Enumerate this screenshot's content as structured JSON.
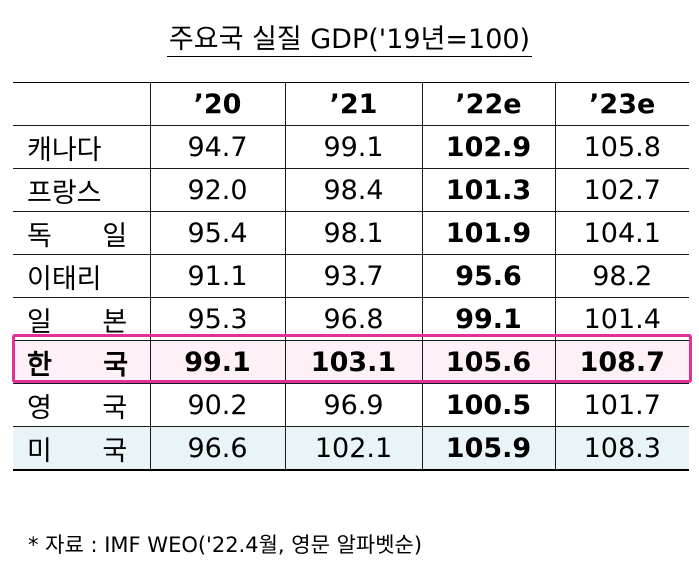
{
  "title": "주요국 실질 GDP('19년=100)",
  "note": "* 자료 : IMF WEO('22.4월, 영문 알파벳순)",
  "colors": {
    "highlight_border": "#e0319b",
    "highlight_fill": "#fdf0f6",
    "last_row_fill": "#e8f4f8"
  },
  "chart_data": {
    "type": "table",
    "title": "주요국 실질 GDP('19년=100)",
    "columns": [
      "",
      "’20",
      "’21",
      "’22e",
      "’23e"
    ],
    "bold_column": "’22e",
    "highlighted_row": "한 국",
    "rows": [
      {
        "country": "캐나다",
        "values": [
          "94.7",
          "99.1",
          "102.9",
          "105.8"
        ]
      },
      {
        "country": "프랑스",
        "values": [
          "92.0",
          "98.4",
          "101.3",
          "102.7"
        ]
      },
      {
        "country": "독 일",
        "values": [
          "95.4",
          "98.1",
          "101.9",
          "104.1"
        ]
      },
      {
        "country": "이태리",
        "values": [
          "91.1",
          "93.7",
          "95.6",
          "98.2"
        ]
      },
      {
        "country": "일 본",
        "values": [
          "95.3",
          "96.8",
          "99.1",
          "101.4"
        ]
      },
      {
        "country": "한 국",
        "values": [
          "99.1",
          "103.1",
          "105.6",
          "108.7"
        ]
      },
      {
        "country": "영 국",
        "values": [
          "90.2",
          "96.9",
          "100.5",
          "101.7"
        ]
      },
      {
        "country": "미 국",
        "values": [
          "96.6",
          "102.1",
          "105.9",
          "108.3"
        ]
      }
    ]
  }
}
